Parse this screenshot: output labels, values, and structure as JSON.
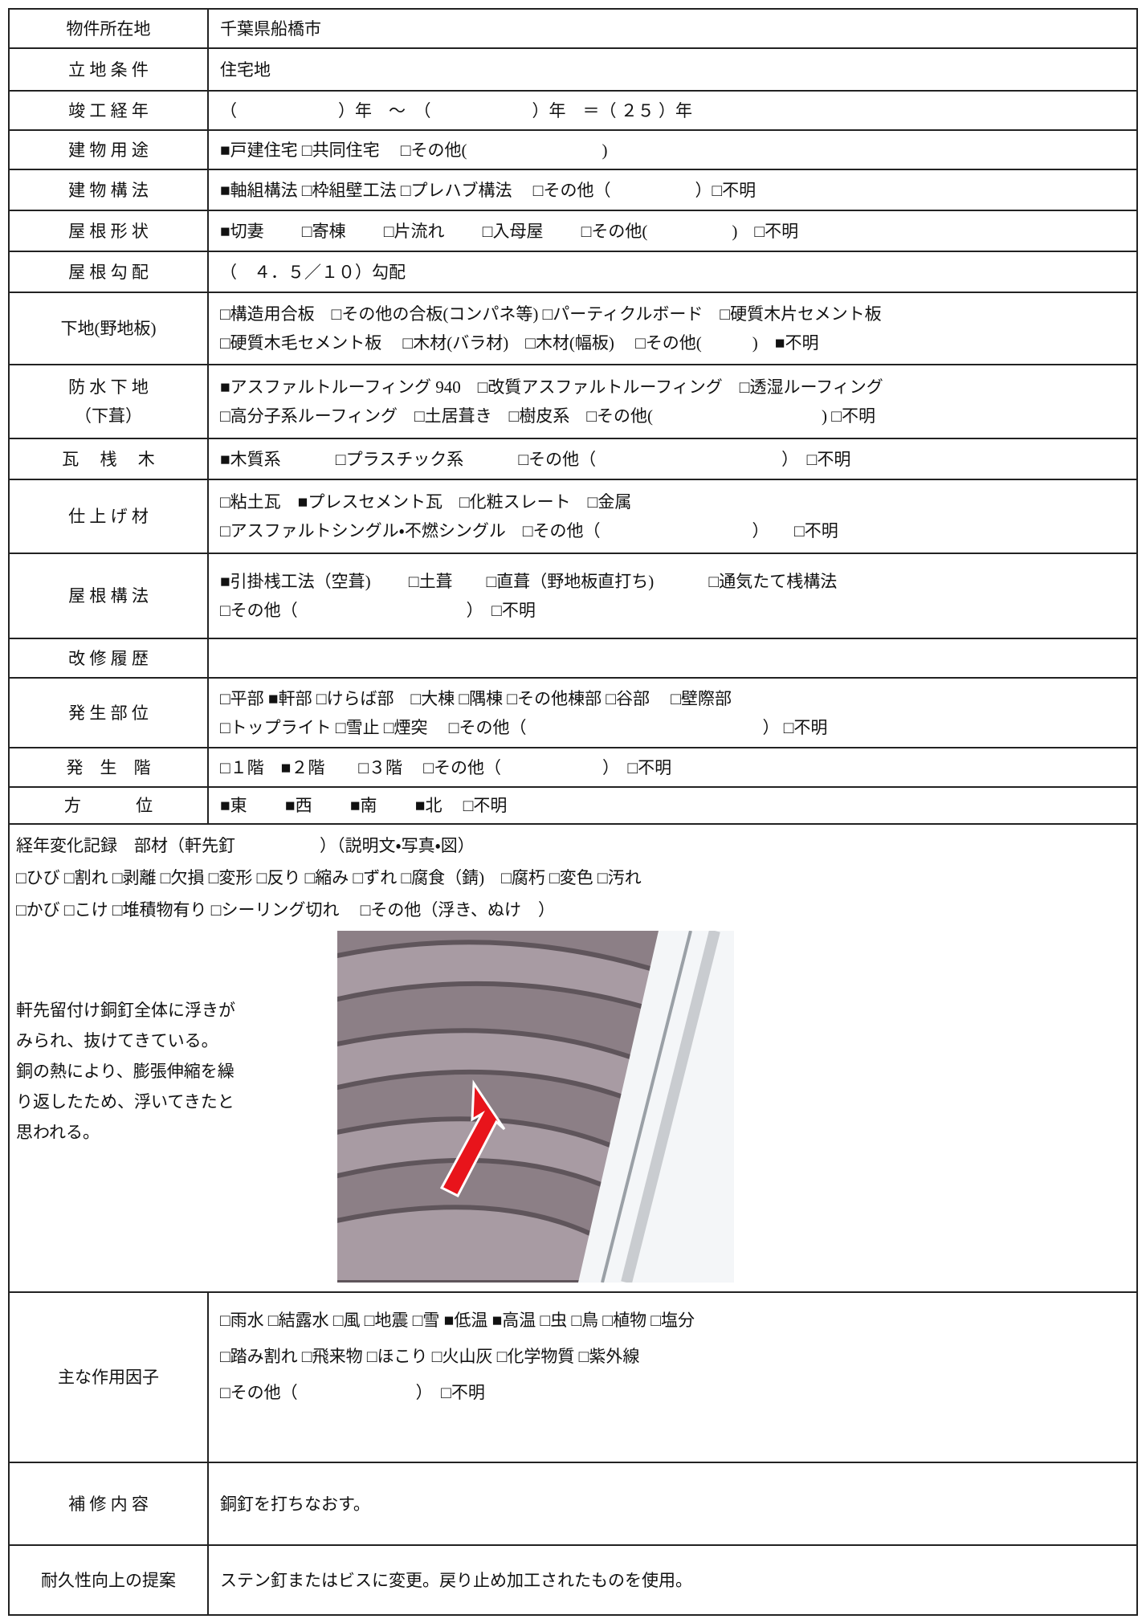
{
  "rows": [
    {
      "label": [
        "物件所在地"
      ],
      "lines": [
        "千葉県船橋市"
      ]
    },
    {
      "label": [
        "立 地 条 件"
      ],
      "lines": [
        "住宅地"
      ]
    },
    {
      "label": [
        "竣 工 経 年"
      ],
      "lines": [
        "（　　　　　　）年　～　（　　　　　　）年　＝（ ２５ ）年"
      ]
    },
    {
      "label": [
        "建 物 用 途"
      ],
      "lines": [
        "■戸建住宅 □共同住宅　 □その他(　　　　　　　　)"
      ]
    },
    {
      "label": [
        "建 物 構 法"
      ],
      "lines": [
        "■軸組構法 □枠組壁工法 □プレハブ構法　 □その他（　　　　　）□不明"
      ]
    },
    {
      "label": [
        "屋 根 形 状"
      ],
      "lines": [
        "■切妻　　 □寄棟　　 □片流れ　　 □入母屋　　 □その他(　　　　　)　□不明"
      ]
    },
    {
      "label": [
        "屋 根 勾 配"
      ],
      "lines": [
        "（　４．５／１０）勾配"
      ]
    },
    {
      "label": [
        "下地(野地板)"
      ],
      "lines": [
        "□構造用合板　□その他の合板(コンパネ等) □パーティクルボード　□硬質木片セメント板",
        "□硬質木毛セメント板　 □木材(バラ材)　□木材(幅板)　 □その他(　　　)　■不明"
      ]
    },
    {
      "label": [
        "防 水 下 地",
        "（下葺）"
      ],
      "lines": [
        "■アスファルトルーフィング 940　□改質アスファルトルーフィング　□透湿ルーフィング",
        "□高分子系ルーフィング　□土居葺き　□樹皮系　□その他(　　　　　　　　　　) □不明"
      ]
    },
    {
      "label": [
        "瓦　 桟　 木"
      ],
      "lines": [
        "■木質系　　　 □プラスチック系　　　 □その他（　　　　　　　　　　　）　□不明"
      ]
    },
    {
      "label": [
        "仕 上 げ 材"
      ],
      "lines": [
        "□粘土瓦　■プレスセメント瓦　□化粧スレート　□金属",
        "□アスファルトシングル・不燃シングル　□その他（　　　　　　　　　）　　□不明"
      ]
    },
    {
      "label": [
        "屋 根 構 法"
      ],
      "lines": [
        "■引掛桟工法（空葺)　　 □土葺　　□直葺（野地板直打ち)　　　 □通気たて桟構法",
        "□その他（　　　　　　　　　　）　□不明"
      ]
    },
    {
      "label": [
        "改 修 履 歴"
      ],
      "lines": []
    },
    {
      "label": [
        "発 生 部 位"
      ],
      "lines": [
        "□平部 ■軒部 □けらば部　□大棟 □隅棟 □その他棟部 □谷部　 □壁際部",
        "□トップライト □雪止 □煙突　 □その他（　　　　　　　　　　　　　　） □不明"
      ]
    },
    {
      "label": [
        "発　生　階"
      ],
      "lines": [
        "□１階　■２階　　□３階　 □その他（　　　　　　）　□不明"
      ]
    },
    {
      "label": [
        "方　　　 位"
      ],
      "lines": [
        "■東　　 ■西　　 ■南　　 ■北　 □不明"
      ]
    }
  ],
  "record": {
    "title": "経年変化記録　部材（軒先釘　　　　　）（説明文・写真・図）",
    "checks": [
      "□ひび □割れ □剥離 □欠損 □変形 □反り □縮み □ずれ □腐食（錆)　□腐朽 □変色 □汚れ",
      "□かび □こけ □堆積物有り □シーリング切れ　 □その他（浮き、ぬけ　）"
    ],
    "description": [
      "軒先留付け銅釘全体に浮きが",
      "みられ、抜けてきている。",
      "銅の熱により、膨張伸縮を繰",
      "り返したため、浮いてきたと",
      "思われる。"
    ]
  },
  "factors": {
    "label": [
      "主な作用因子"
    ],
    "lines": [
      "□雨水 □結露水 □風 □地震 □雪 ■低温 ■高温 □虫 □鳥 □植物 □塩分",
      "□踏み割れ □飛来物 □ほこり □火山灰 □化学物質 □紫外線",
      "□その他（　　　　　　　）　□不明"
    ]
  },
  "repair": {
    "label": [
      "補 修 内 容"
    ],
    "lines": [
      "銅釘を打ちなおす。"
    ]
  },
  "proposal": {
    "label": [
      "耐久性向上の提案"
    ],
    "lines": [
      "ステン釘またはビスに変更。戻り止め加工されたものを使用。"
    ]
  }
}
